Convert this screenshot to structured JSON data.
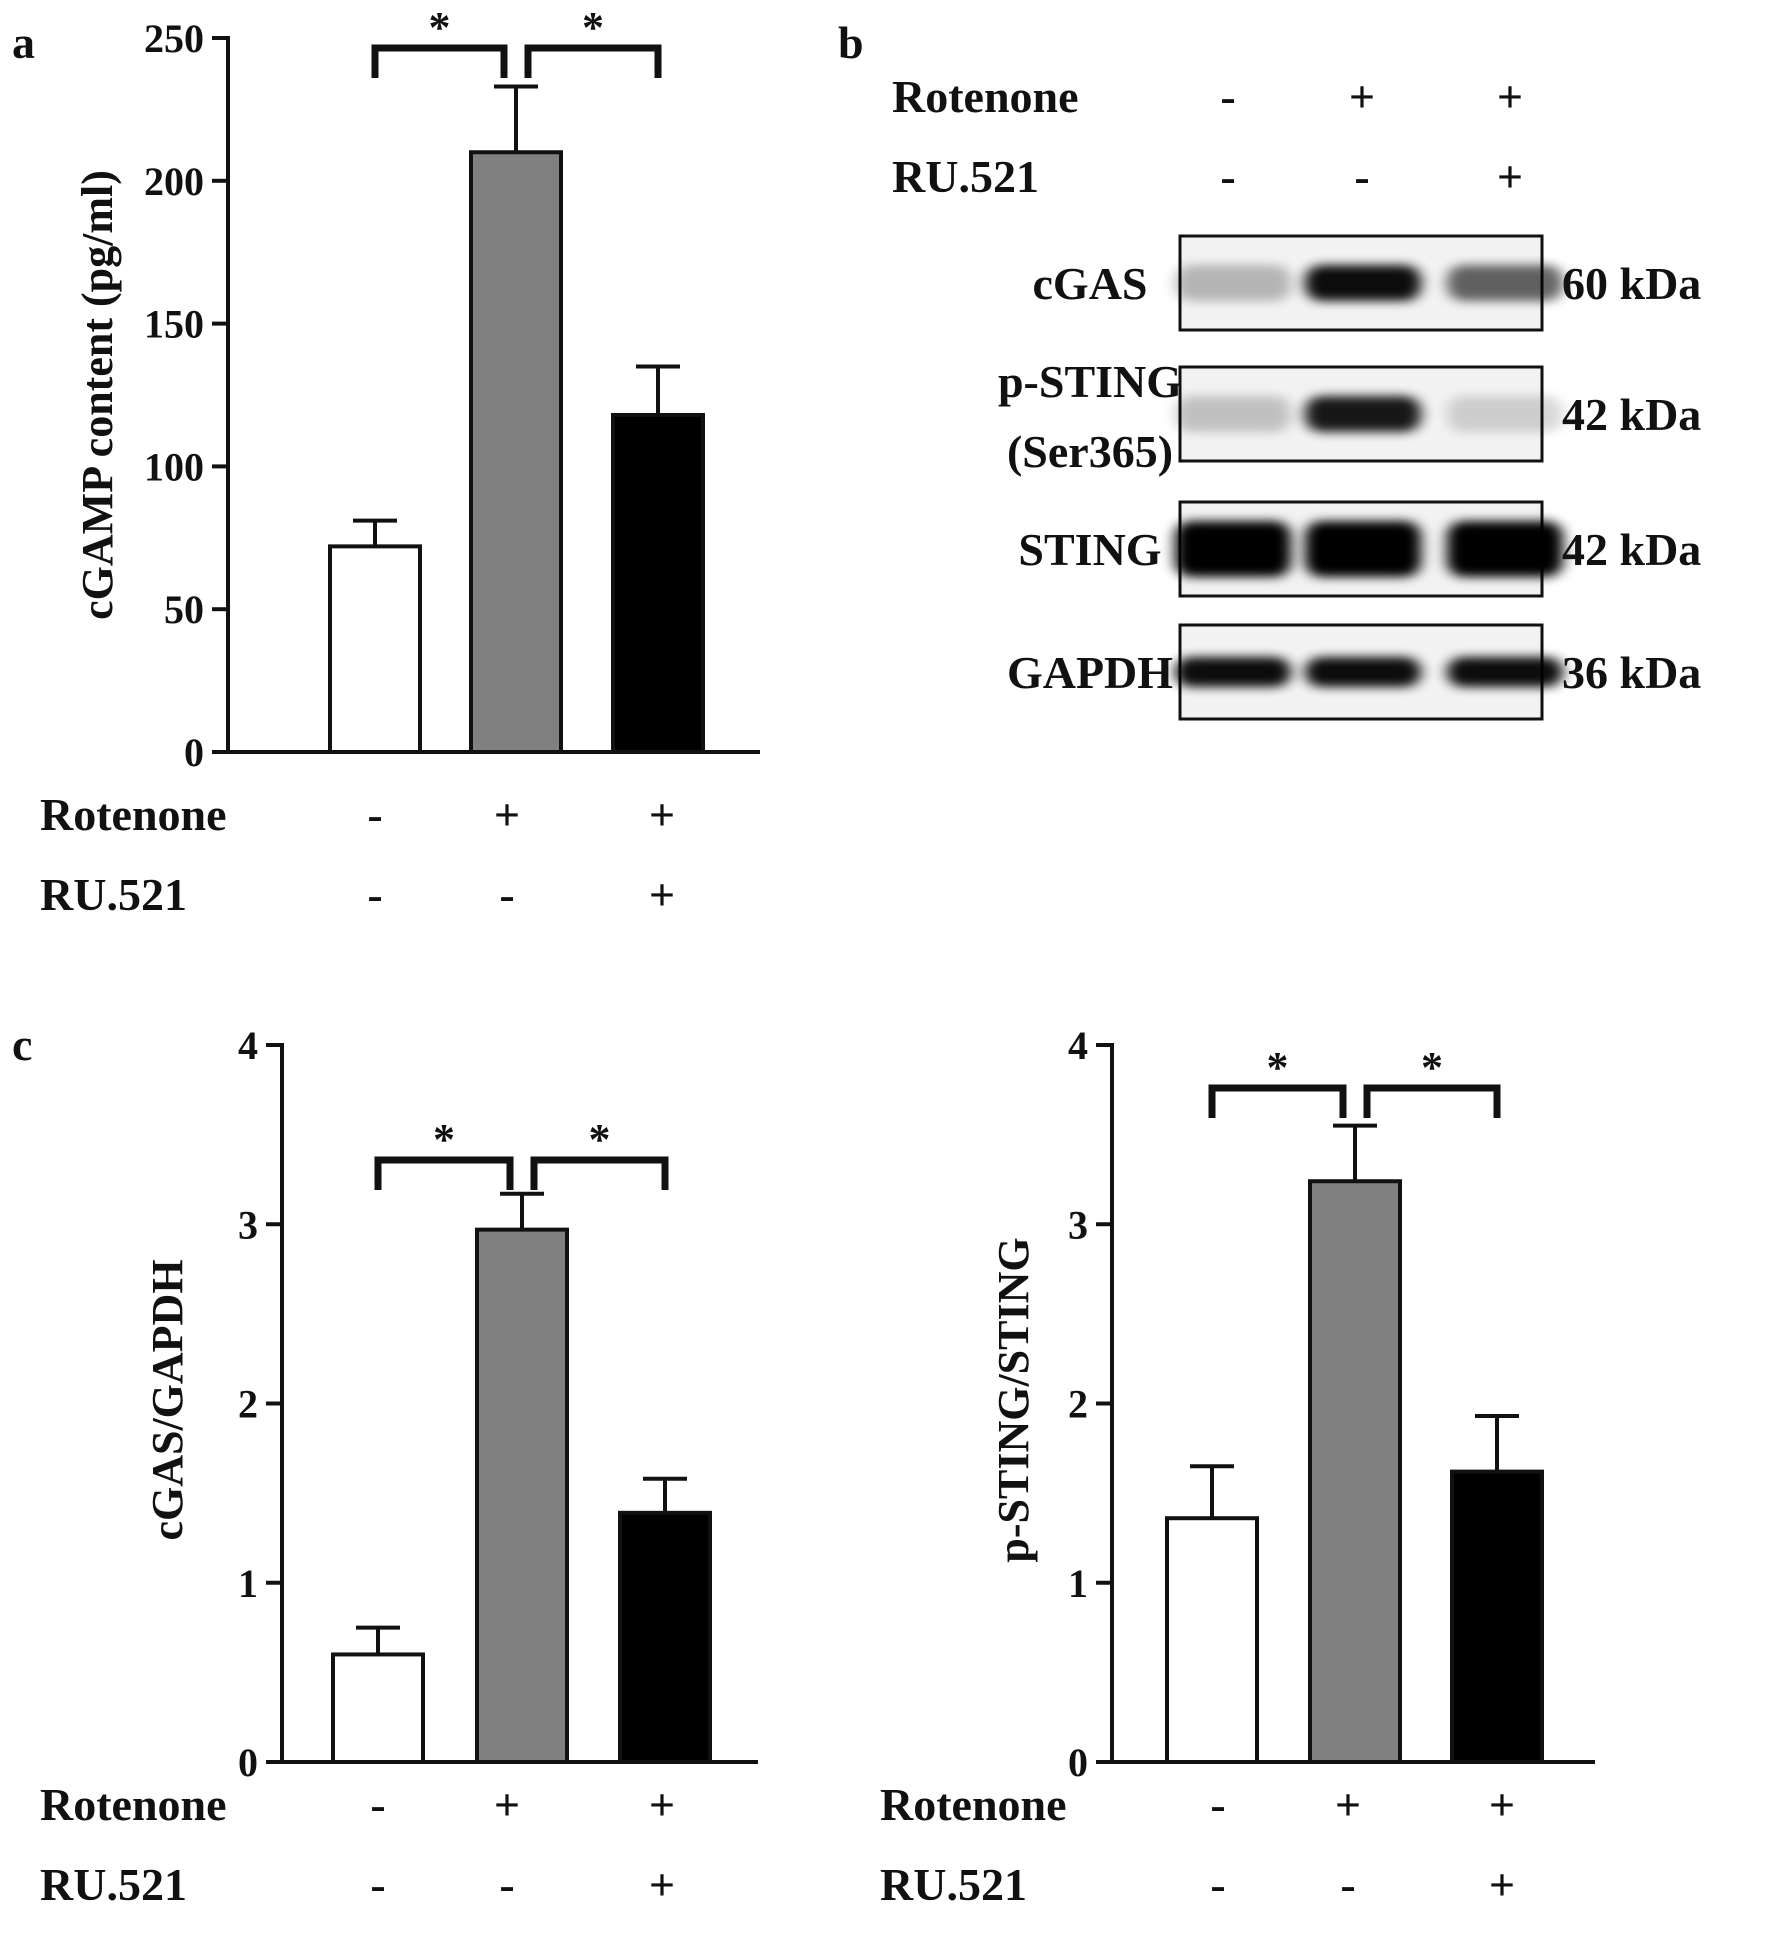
{
  "colors": {
    "control": "#ffffff",
    "rotenone": "#808080",
    "rotenone_ru521": "#000000",
    "axis": "#111111",
    "band": "#000000"
  },
  "panel_labels": {
    "a": "a",
    "b": "b",
    "c": "c"
  },
  "conditions": {
    "row1": {
      "label": "Rotenone",
      "marks": [
        "-",
        "+",
        "+"
      ]
    },
    "row2": {
      "label": "RU.521",
      "marks": [
        "-",
        "-",
        "+"
      ]
    }
  },
  "blot": {
    "rows": [
      {
        "name": "cGAS",
        "size": "60 kDa",
        "intensities": [
          0.25,
          0.95,
          0.6
        ]
      },
      {
        "name": "p-STING",
        "name2": "(Ser365)",
        "size": "42 kDa",
        "intensities": [
          0.2,
          0.9,
          0.15
        ]
      },
      {
        "name": "STING",
        "size": "42 kDa",
        "intensities": [
          1.0,
          1.0,
          1.0
        ]
      },
      {
        "name": "GAPDH",
        "size": "36 kDa",
        "intensities": [
          0.95,
          0.95,
          0.95
        ]
      }
    ]
  },
  "chart_data": [
    {
      "panel": "a",
      "type": "bar",
      "ylabel": "cGAMP content (pg/ml)",
      "ylim": [
        0,
        250
      ],
      "yticks": [
        0,
        50,
        100,
        150,
        200,
        250
      ],
      "yticklabels": [
        "0",
        "50",
        "100",
        "150",
        "200",
        "250"
      ],
      "values": [
        72,
        210,
        118
      ],
      "errors": [
        9,
        23,
        17
      ],
      "significance": [
        {
          "from": 0,
          "to": 1,
          "label": "*"
        },
        {
          "from": 1,
          "to": 2,
          "label": "*"
        }
      ]
    },
    {
      "panel": "c-left",
      "type": "bar",
      "ylabel": "cGAS/GAPDH",
      "ylim": [
        0,
        4
      ],
      "yticks": [
        0,
        1,
        2,
        3,
        4
      ],
      "yticklabels": [
        "0",
        "1",
        "2",
        "3",
        "4"
      ],
      "values": [
        0.6,
        2.97,
        1.39
      ],
      "errors": [
        0.15,
        0.2,
        0.19
      ],
      "significance": [
        {
          "from": 0,
          "to": 1,
          "label": "*"
        },
        {
          "from": 1,
          "to": 2,
          "label": "*"
        }
      ]
    },
    {
      "panel": "c-right",
      "type": "bar",
      "ylabel": "p-STING/STING",
      "ylim": [
        0,
        4
      ],
      "yticks": [
        0,
        1,
        2,
        3,
        4
      ],
      "yticklabels": [
        "0",
        "1",
        "2",
        "3",
        "4"
      ],
      "values": [
        1.36,
        3.24,
        1.62
      ],
      "errors": [
        0.29,
        0.31,
        0.31
      ],
      "significance": [
        {
          "from": 0,
          "to": 1,
          "label": "*"
        },
        {
          "from": 1,
          "to": 2,
          "label": "*"
        }
      ]
    }
  ]
}
